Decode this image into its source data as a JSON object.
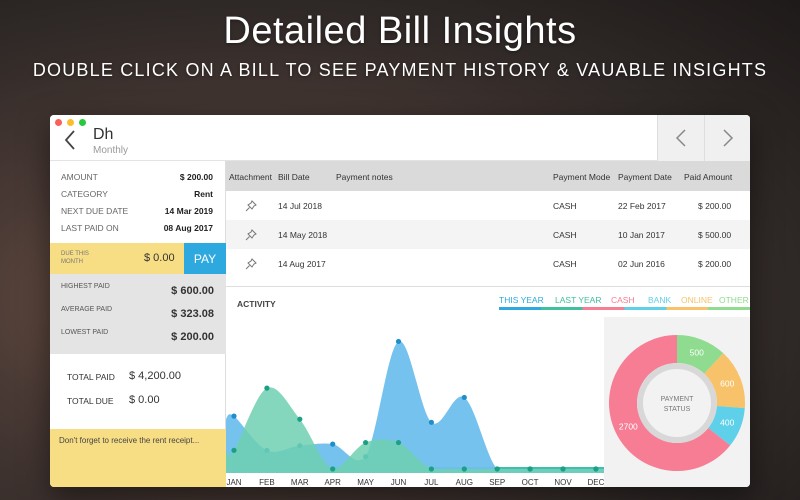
{
  "promo": {
    "headline": "Detailed Bill Insights",
    "subline": "DOUBLE CLICK ON A BILL TO SEE PAYMENT HISTORY & VAUABLE INSIGHTS"
  },
  "header": {
    "title": "Dh",
    "subtitle": "Monthly",
    "back_icon": "chevron-left-icon",
    "prev_icon": "chevron-left-icon",
    "next_icon": "chevron-right-icon"
  },
  "details": {
    "amount_label": "AMOUNT",
    "amount_value": "$ 200.00",
    "category_label": "CATEGORY",
    "category_value": "Rent",
    "next_due_label": "NEXT DUE DATE",
    "next_due_value": "14 Mar 2019",
    "last_paid_label": "LAST PAID ON",
    "last_paid_value": "08 Aug 2017"
  },
  "due": {
    "label": "DUE THIS MONTH",
    "value": "$ 0.00",
    "pay_label": "PAY"
  },
  "stats": {
    "highest_label": "HIGHEST PAID",
    "highest_value": "$ 600.00",
    "average_label": "AVERAGE PAID",
    "average_value": "$ 323.08",
    "lowest_label": "LOWEST PAID",
    "lowest_value": "$ 200.00"
  },
  "totals": {
    "total_paid_label": "TOTAL PAID",
    "total_paid_value": "$ 4,200.00",
    "total_due_label": "TOTAL DUE",
    "total_due_value": "$ 0.00"
  },
  "note": "Don't forget to receive the rent receipt...",
  "table": {
    "headers": [
      "Attachment",
      "Bill Date",
      "Payment notes",
      "Payment Mode",
      "Payment Date",
      "Paid Amount"
    ],
    "rows": [
      {
        "bill_date": "14 Jul 2018",
        "notes": "",
        "mode": "CASH",
        "payment_date": "22 Feb 2017",
        "amount": "$ 200.00"
      },
      {
        "bill_date": "14 May 2018",
        "notes": "",
        "mode": "CASH",
        "payment_date": "10 Jan 2017",
        "amount": "$ 500.00"
      },
      {
        "bill_date": "14 Aug 2017",
        "notes": "",
        "mode": "CASH",
        "payment_date": "02 Jun 2016",
        "amount": "$ 200.00"
      }
    ],
    "attachment_icon": "pin-icon"
  },
  "activity": {
    "title": "ACTIVITY",
    "tabs": [
      {
        "label": "THIS YEAR",
        "color": "#2ea9e0"
      },
      {
        "label": "LAST YEAR",
        "color": "#3fbf9e"
      },
      {
        "label": "CASH",
        "color": "#f77d95"
      },
      {
        "label": "BANK",
        "color": "#5fd0ea"
      },
      {
        "label": "ONLINE",
        "color": "#f7c26a"
      },
      {
        "label": "OTHER",
        "color": "#8fdb8f"
      }
    ],
    "active_tab": "THIS YEAR"
  },
  "chart_data": [
    {
      "type": "area",
      "categories": [
        "JAN",
        "FEB",
        "MAR",
        "APR",
        "MAY",
        "JUN",
        "JUL",
        "AUG",
        "SEP",
        "OCT",
        "NOV",
        "DEC"
      ],
      "series": [
        {
          "color": "#6fbfee",
          "values": [
            340,
            120,
            150,
            160,
            80,
            820,
            300,
            460,
            0,
            0,
            0,
            0
          ]
        },
        {
          "color": "#6fd0b0",
          "values": [
            120,
            520,
            320,
            0,
            170,
            170,
            0,
            0,
            0,
            0,
            0,
            0
          ]
        }
      ],
      "ylim": [
        0,
        900
      ]
    },
    {
      "type": "pie",
      "labels": [
        "500",
        "600",
        "400",
        "2700"
      ],
      "values": [
        500,
        600,
        400,
        2700
      ],
      "colors": [
        "#8fdb8f",
        "#f7c26a",
        "#5fd0ea",
        "#f77d95"
      ],
      "center_label": "PAYMENT STATUS"
    }
  ]
}
